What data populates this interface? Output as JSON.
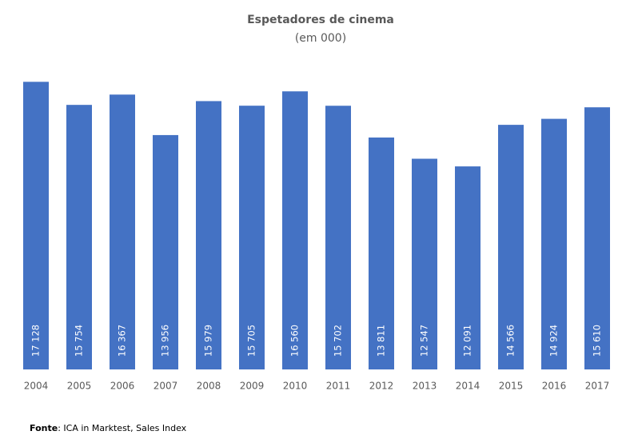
{
  "chart_data": {
    "type": "bar",
    "title": "Espetadores de cinema",
    "subtitle": "(em 000)",
    "categories": [
      "2004",
      "2005",
      "2006",
      "2007",
      "2008",
      "2009",
      "2010",
      "2011",
      "2012",
      "2013",
      "2014",
      "2015",
      "2016",
      "2017"
    ],
    "values": [
      17128,
      15754,
      16367,
      13956,
      15979,
      15705,
      16560,
      15702,
      13811,
      12547,
      12091,
      14566,
      14924,
      15610
    ],
    "value_labels": [
      "17 128",
      "15 754",
      "16 367",
      "13 956",
      "15 979",
      "15 705",
      "16 560",
      "15 702",
      "13 811",
      "12 547",
      "12 091",
      "14 566",
      "14 924",
      "15 610"
    ],
    "color": "#4472c4",
    "ylim": [
      0,
      18000
    ],
    "grid": false,
    "source_label": "Fonte",
    "source_text": ": ICA in Marktest, Sales Index"
  }
}
